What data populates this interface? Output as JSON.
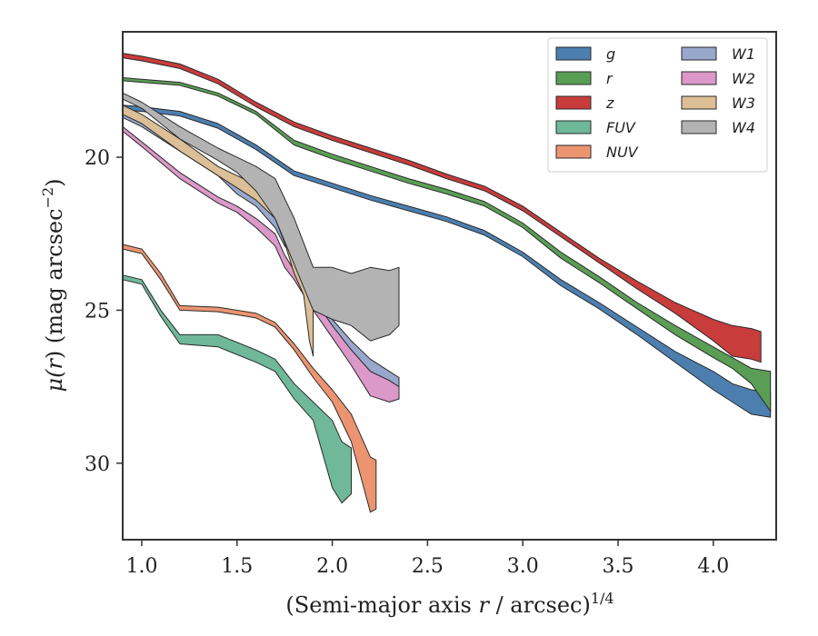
{
  "chart_data": {
    "type": "area",
    "xlabel_main": "(Semi-major axis ",
    "xlabel_var": "r",
    "xlabel_tail": " / arcsec)",
    "xlabel_exp": "1/4",
    "ylabel_main": "μ(",
    "ylabel_var": "r",
    "ylabel_tail": ") (mag arcsec",
    "ylabel_exp": "−2",
    "ylabel_close": ")",
    "xlim": [
      0.9,
      4.33
    ],
    "ylim": [
      32.5,
      15.9
    ],
    "y_inverted": true,
    "x_ticks": [
      1.0,
      1.5,
      2.0,
      2.5,
      3.0,
      3.5,
      4.0
    ],
    "x_tick_labels": [
      "1.0",
      "1.5",
      "2.0",
      "2.5",
      "3.0",
      "3.5",
      "4.0"
    ],
    "y_ticks": [
      20,
      25,
      30
    ],
    "y_tick_labels": [
      "20",
      "25",
      "30"
    ],
    "grid": false,
    "legend_placement": "top-right",
    "series": [
      {
        "name": "g",
        "color": "#4c7fb0",
        "x": [
          0.9,
          1.0,
          1.2,
          1.4,
          1.6,
          1.8,
          2.0,
          2.2,
          2.4,
          2.6,
          2.8,
          3.0,
          3.2,
          3.4,
          3.6,
          3.8,
          4.0,
          4.1,
          4.2,
          4.3
        ],
        "y_upper": [
          18.3,
          18.35,
          18.5,
          18.9,
          19.6,
          20.45,
          20.85,
          21.25,
          21.6,
          21.95,
          22.4,
          23.1,
          24.0,
          24.75,
          25.55,
          26.35,
          27.0,
          27.4,
          27.6,
          27.7
        ],
        "y_lower": [
          18.45,
          18.5,
          18.65,
          19.05,
          19.75,
          20.6,
          21.0,
          21.4,
          21.75,
          22.1,
          22.55,
          23.25,
          24.2,
          24.95,
          25.8,
          26.7,
          27.6,
          28.0,
          28.4,
          28.5
        ]
      },
      {
        "name": "r",
        "color": "#5a9e55",
        "x": [
          0.9,
          1.0,
          1.2,
          1.4,
          1.6,
          1.8,
          2.0,
          2.2,
          2.4,
          2.6,
          2.8,
          3.0,
          3.2,
          3.4,
          3.6,
          3.8,
          4.0,
          4.1,
          4.2,
          4.3
        ],
        "y_upper": [
          17.4,
          17.45,
          17.55,
          17.9,
          18.5,
          19.45,
          19.9,
          20.3,
          20.7,
          21.05,
          21.45,
          22.15,
          23.1,
          23.9,
          24.75,
          25.5,
          26.2,
          26.55,
          26.9,
          27.0
        ],
        "y_lower": [
          17.5,
          17.55,
          17.65,
          18.0,
          18.6,
          19.6,
          20.05,
          20.45,
          20.85,
          21.2,
          21.6,
          22.3,
          23.3,
          24.1,
          24.95,
          25.8,
          26.55,
          26.9,
          27.4,
          28.3
        ]
      },
      {
        "name": "z",
        "color": "#c83c3c",
        "x": [
          0.9,
          1.0,
          1.2,
          1.4,
          1.6,
          1.8,
          2.0,
          2.2,
          2.4,
          2.6,
          2.8,
          3.0,
          3.2,
          3.4,
          3.6,
          3.8,
          4.0,
          4.1,
          4.2,
          4.25
        ],
        "y_upper": [
          16.6,
          16.7,
          16.95,
          17.45,
          18.2,
          18.85,
          19.3,
          19.7,
          20.1,
          20.55,
          20.95,
          21.6,
          22.45,
          23.3,
          24.05,
          24.75,
          25.3,
          25.5,
          25.6,
          25.7
        ],
        "y_lower": [
          16.75,
          16.85,
          17.1,
          17.6,
          18.35,
          19.0,
          19.45,
          19.85,
          20.25,
          20.7,
          21.1,
          21.75,
          22.6,
          23.45,
          24.3,
          25.1,
          26.0,
          26.5,
          26.6,
          26.7
        ]
      },
      {
        "name": "FUV",
        "color": "#6fb89a",
        "x": [
          0.9,
          1.0,
          1.1,
          1.2,
          1.4,
          1.6,
          1.7,
          1.8,
          1.9,
          2.0,
          2.05,
          2.1
        ],
        "y_upper": [
          23.85,
          24.0,
          25.0,
          25.8,
          25.8,
          26.3,
          26.6,
          27.4,
          28.0,
          28.6,
          29.3,
          29.5
        ],
        "y_lower": [
          24.0,
          24.15,
          25.2,
          26.1,
          26.2,
          26.7,
          27.0,
          27.9,
          28.6,
          30.8,
          31.3,
          31.0
        ]
      },
      {
        "name": "NUV",
        "color": "#ec9470",
        "x": [
          0.9,
          1.0,
          1.1,
          1.2,
          1.4,
          1.6,
          1.7,
          1.8,
          1.9,
          2.0,
          2.1,
          2.2,
          2.23
        ],
        "y_upper": [
          22.85,
          23.0,
          23.8,
          24.85,
          24.9,
          25.1,
          25.4,
          26.1,
          26.9,
          27.6,
          28.4,
          29.8,
          29.9
        ],
        "y_lower": [
          23.0,
          23.15,
          24.0,
          25.0,
          25.05,
          25.25,
          25.55,
          26.3,
          27.2,
          28.0,
          29.3,
          31.6,
          31.5
        ]
      },
      {
        "name": "W1",
        "color": "#98a7cc",
        "x": [
          0.9,
          1.0,
          1.2,
          1.4,
          1.5,
          1.6,
          1.7,
          1.75,
          1.8,
          1.9,
          2.0,
          2.1,
          2.2,
          2.3,
          2.35
        ],
        "y_upper": [
          18.5,
          18.8,
          19.6,
          20.3,
          20.7,
          21.1,
          21.8,
          22.3,
          22.8,
          24.0,
          25.3,
          26.0,
          26.6,
          27.0,
          27.2
        ],
        "y_lower": [
          18.7,
          19.0,
          19.8,
          20.6,
          21.2,
          21.6,
          22.3,
          22.9,
          23.3,
          24.4,
          25.6,
          26.3,
          27.0,
          27.3,
          27.6
        ]
      },
      {
        "name": "W2",
        "color": "#db98c8",
        "x": [
          0.9,
          1.0,
          1.2,
          1.4,
          1.5,
          1.6,
          1.7,
          1.75,
          1.8,
          1.9,
          2.0,
          2.1,
          2.2,
          2.3,
          2.35
        ],
        "y_upper": [
          19.0,
          19.5,
          20.5,
          21.3,
          21.6,
          22.0,
          22.5,
          23.2,
          23.7,
          24.6,
          25.5,
          26.3,
          27.0,
          27.3,
          27.5
        ],
        "y_lower": [
          19.15,
          19.65,
          20.7,
          21.5,
          21.8,
          22.3,
          22.9,
          23.6,
          24.0,
          25.0,
          25.9,
          26.8,
          27.8,
          28.0,
          27.9
        ]
      },
      {
        "name": "W3",
        "color": "#dcbf96",
        "x": [
          0.9,
          1.0,
          1.2,
          1.4,
          1.5,
          1.6,
          1.7,
          1.75,
          1.8,
          1.85,
          1.88,
          1.9
        ],
        "y_upper": [
          18.3,
          18.6,
          19.4,
          20.3,
          20.6,
          20.9,
          21.4,
          21.9,
          22.5,
          23.0,
          24.0,
          25.0
        ],
        "y_lower": [
          18.6,
          18.9,
          19.8,
          20.6,
          21.0,
          21.4,
          22.0,
          22.8,
          23.8,
          24.5,
          26.0,
          26.5
        ]
      },
      {
        "name": "W4",
        "color": "#b3b3b3",
        "x": [
          0.9,
          1.0,
          1.2,
          1.4,
          1.5,
          1.6,
          1.7,
          1.8,
          1.9,
          2.0,
          2.1,
          2.2,
          2.3,
          2.35
        ],
        "y_upper": [
          17.9,
          18.2,
          19.0,
          19.7,
          20.0,
          20.3,
          20.7,
          22.0,
          23.6,
          23.6,
          23.8,
          23.6,
          23.7,
          23.6
        ],
        "y_lower": [
          18.1,
          18.4,
          19.4,
          20.1,
          20.5,
          21.1,
          22.0,
          23.5,
          25.0,
          25.3,
          25.5,
          26.0,
          25.8,
          25.5
        ]
      }
    ]
  }
}
